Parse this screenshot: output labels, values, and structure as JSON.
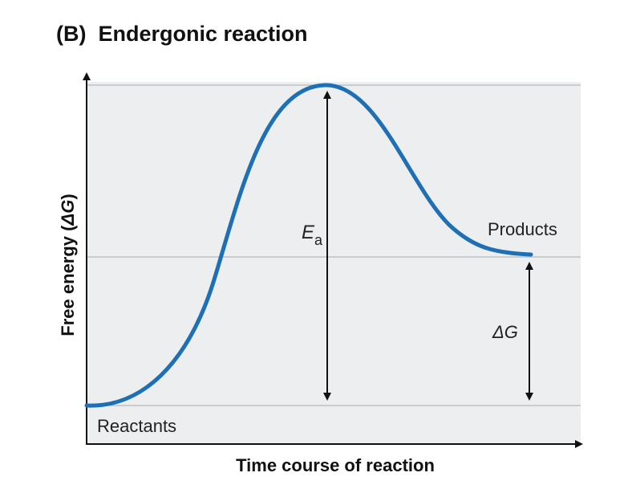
{
  "title": "(B)  Endergonic reaction",
  "y_axis_label_prefix": "Free energy (",
  "y_axis_label_symbol": "ΔG",
  "y_axis_label_suffix": ")",
  "x_axis_label": "Time course of reaction",
  "reactants_label": "Reactants",
  "products_label": "Products",
  "activation_energy_symbol": "E",
  "activation_energy_subscript": "a",
  "delta_g_label": "ΔG",
  "colors": {
    "curve": "#1f6fb5",
    "panel_background": "#eceef0",
    "axis": "#111111",
    "reference_line": "#b5b8bb",
    "text": "#222222"
  }
}
